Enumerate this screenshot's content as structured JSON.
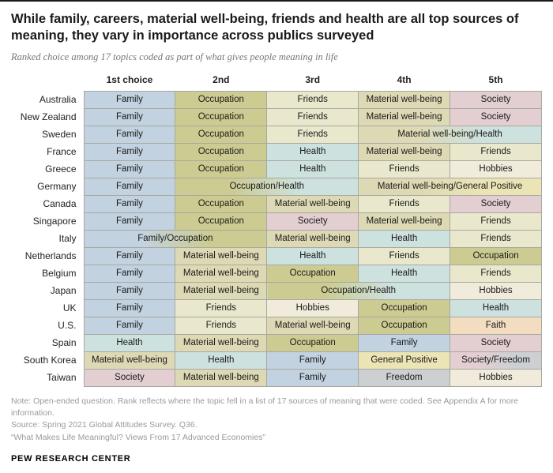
{
  "header": {
    "title": "While family, careers, material well-being, friends and health are all top sources of meaning, they vary in importance across publics surveyed",
    "subtitle": "Ranked choice among 17 topics coded as part of what gives people meaning in life"
  },
  "chart_data": {
    "type": "table",
    "columns": [
      "1st choice",
      "2nd",
      "3rd",
      "4th",
      "5th"
    ],
    "topic_colors": {
      "Family": "#c3d2e0",
      "Occupation": "#cccc92",
      "Friends": "#e9e8cc",
      "Material well-being": "#ded9b5",
      "Health": "#cde1df",
      "Society": "#e3ced2",
      "Hobbies": "#f0ebdb",
      "Faith": "#f3ddc1",
      "Freedom": "#ccd0d3",
      "General Positive": "#ebe4b5"
    },
    "rows": [
      {
        "country": "Australia",
        "cells": [
          {
            "label": "Family",
            "topics": [
              "Family"
            ]
          },
          {
            "label": "Occupation",
            "topics": [
              "Occupation"
            ]
          },
          {
            "label": "Friends",
            "topics": [
              "Friends"
            ]
          },
          {
            "label": "Material well-being",
            "topics": [
              "Material well-being"
            ]
          },
          {
            "label": "Society",
            "topics": [
              "Society"
            ]
          }
        ]
      },
      {
        "country": "New Zealand",
        "cells": [
          {
            "label": "Family",
            "topics": [
              "Family"
            ]
          },
          {
            "label": "Occupation",
            "topics": [
              "Occupation"
            ]
          },
          {
            "label": "Friends",
            "topics": [
              "Friends"
            ]
          },
          {
            "label": "Material well-being",
            "topics": [
              "Material well-being"
            ]
          },
          {
            "label": "Society",
            "topics": [
              "Society"
            ]
          }
        ]
      },
      {
        "country": "Sweden",
        "cells": [
          {
            "label": "Family",
            "topics": [
              "Family"
            ]
          },
          {
            "label": "Occupation",
            "topics": [
              "Occupation"
            ]
          },
          {
            "label": "Friends",
            "topics": [
              "Friends"
            ]
          },
          {
            "label": "Material well-being/Health",
            "topics": [
              "Material well-being",
              "Health"
            ],
            "colspan": 2
          }
        ]
      },
      {
        "country": "France",
        "cells": [
          {
            "label": "Family",
            "topics": [
              "Family"
            ]
          },
          {
            "label": "Occupation",
            "topics": [
              "Occupation"
            ]
          },
          {
            "label": "Health",
            "topics": [
              "Health"
            ]
          },
          {
            "label": "Material well-being",
            "topics": [
              "Material well-being"
            ]
          },
          {
            "label": "Friends",
            "topics": [
              "Friends"
            ]
          }
        ]
      },
      {
        "country": "Greece",
        "cells": [
          {
            "label": "Family",
            "topics": [
              "Family"
            ]
          },
          {
            "label": "Occupation",
            "topics": [
              "Occupation"
            ]
          },
          {
            "label": "Health",
            "topics": [
              "Health"
            ]
          },
          {
            "label": "Friends",
            "topics": [
              "Friends"
            ]
          },
          {
            "label": "Hobbies",
            "topics": [
              "Hobbies"
            ]
          }
        ]
      },
      {
        "country": "Germany",
        "cells": [
          {
            "label": "Family",
            "topics": [
              "Family"
            ]
          },
          {
            "label": "Occupation/Health",
            "topics": [
              "Occupation",
              "Health"
            ],
            "colspan": 2
          },
          {
            "label": "Material well-being/General Positive",
            "topics": [
              "Material well-being",
              "General Positive"
            ],
            "colspan": 2
          }
        ]
      },
      {
        "country": "Canada",
        "cells": [
          {
            "label": "Family",
            "topics": [
              "Family"
            ]
          },
          {
            "label": "Occupation",
            "topics": [
              "Occupation"
            ]
          },
          {
            "label": "Material well-being",
            "topics": [
              "Material well-being"
            ]
          },
          {
            "label": "Friends",
            "topics": [
              "Friends"
            ]
          },
          {
            "label": "Society",
            "topics": [
              "Society"
            ]
          }
        ]
      },
      {
        "country": "Singapore",
        "cells": [
          {
            "label": "Family",
            "topics": [
              "Family"
            ]
          },
          {
            "label": "Occupation",
            "topics": [
              "Occupation"
            ]
          },
          {
            "label": "Society",
            "topics": [
              "Society"
            ]
          },
          {
            "label": "Material well-being",
            "topics": [
              "Material well-being"
            ]
          },
          {
            "label": "Friends",
            "topics": [
              "Friends"
            ]
          }
        ]
      },
      {
        "country": "Italy",
        "cells": [
          {
            "label": "Family/Occupation",
            "topics": [
              "Family",
              "Occupation"
            ],
            "colspan": 2
          },
          {
            "label": "Material well-being",
            "topics": [
              "Material well-being"
            ]
          },
          {
            "label": "Health",
            "topics": [
              "Health"
            ]
          },
          {
            "label": "Friends",
            "topics": [
              "Friends"
            ]
          }
        ]
      },
      {
        "country": "Netherlands",
        "cells": [
          {
            "label": "Family",
            "topics": [
              "Family"
            ]
          },
          {
            "label": "Material well-being",
            "topics": [
              "Material well-being"
            ]
          },
          {
            "label": "Health",
            "topics": [
              "Health"
            ]
          },
          {
            "label": "Friends",
            "topics": [
              "Friends"
            ]
          },
          {
            "label": "Occupation",
            "topics": [
              "Occupation"
            ]
          }
        ]
      },
      {
        "country": "Belgium",
        "cells": [
          {
            "label": "Family",
            "topics": [
              "Family"
            ]
          },
          {
            "label": "Material well-being",
            "topics": [
              "Material well-being"
            ]
          },
          {
            "label": "Occupation",
            "topics": [
              "Occupation"
            ]
          },
          {
            "label": "Health",
            "topics": [
              "Health"
            ]
          },
          {
            "label": "Friends",
            "topics": [
              "Friends"
            ]
          }
        ]
      },
      {
        "country": "Japan",
        "cells": [
          {
            "label": "Family",
            "topics": [
              "Family"
            ]
          },
          {
            "label": "Material well-being",
            "topics": [
              "Material well-being"
            ]
          },
          {
            "label": "Occupation/Health",
            "topics": [
              "Occupation",
              "Health"
            ],
            "colspan": 2
          },
          {
            "label": "Hobbies",
            "topics": [
              "Hobbies"
            ]
          }
        ]
      },
      {
        "country": "UK",
        "cells": [
          {
            "label": "Family",
            "topics": [
              "Family"
            ]
          },
          {
            "label": "Friends",
            "topics": [
              "Friends"
            ]
          },
          {
            "label": "Hobbies",
            "topics": [
              "Hobbies"
            ]
          },
          {
            "label": "Occupation",
            "topics": [
              "Occupation"
            ]
          },
          {
            "label": "Health",
            "topics": [
              "Health"
            ]
          }
        ]
      },
      {
        "country": "U.S.",
        "cells": [
          {
            "label": "Family",
            "topics": [
              "Family"
            ]
          },
          {
            "label": "Friends",
            "topics": [
              "Friends"
            ]
          },
          {
            "label": "Material well-being",
            "topics": [
              "Material well-being"
            ]
          },
          {
            "label": "Occupation",
            "topics": [
              "Occupation"
            ]
          },
          {
            "label": "Faith",
            "topics": [
              "Faith"
            ]
          }
        ]
      },
      {
        "country": "Spain",
        "cells": [
          {
            "label": "Health",
            "topics": [
              "Health"
            ]
          },
          {
            "label": "Material well-being",
            "topics": [
              "Material well-being"
            ]
          },
          {
            "label": "Occupation",
            "topics": [
              "Occupation"
            ]
          },
          {
            "label": "Family",
            "topics": [
              "Family"
            ]
          },
          {
            "label": "Society",
            "topics": [
              "Society"
            ]
          }
        ]
      },
      {
        "country": "South Korea",
        "cells": [
          {
            "label": "Material well-being",
            "topics": [
              "Material well-being"
            ]
          },
          {
            "label": "Health",
            "topics": [
              "Health"
            ]
          },
          {
            "label": "Family",
            "topics": [
              "Family"
            ]
          },
          {
            "label": "General Positive",
            "topics": [
              "General Positive"
            ]
          },
          {
            "label": "Society/Freedom",
            "topics": [
              "Society",
              "Freedom"
            ]
          }
        ]
      },
      {
        "country": "Taiwan",
        "cells": [
          {
            "label": "Society",
            "topics": [
              "Society"
            ]
          },
          {
            "label": "Material well-being",
            "topics": [
              "Material well-being"
            ]
          },
          {
            "label": "Family",
            "topics": [
              "Family"
            ]
          },
          {
            "label": "Freedom",
            "topics": [
              "Freedom"
            ]
          },
          {
            "label": "Hobbies",
            "topics": [
              "Hobbies"
            ]
          }
        ]
      }
    ]
  },
  "notes": {
    "note": "Note: Open-ended question. Rank reflects where the topic fell in a list of 17 sources of meaning that were coded. See Appendix A for more information.",
    "source": "Source: Spring 2021 Global Attitudes Survey. Q36.",
    "report": "“What Makes Life Meaningful? Views From 17 Advanced Economies”"
  },
  "footer": {
    "brand": "PEW RESEARCH CENTER"
  }
}
